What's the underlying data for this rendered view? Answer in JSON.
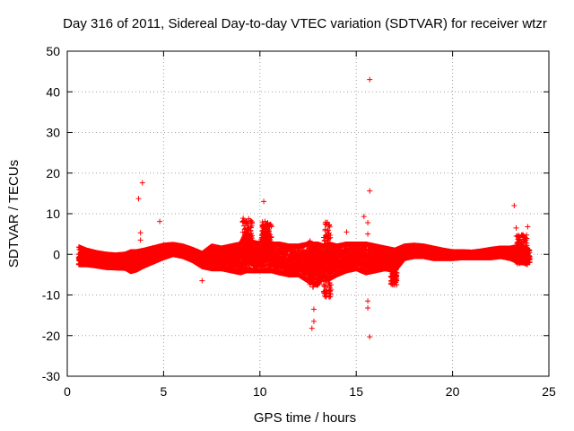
{
  "chart_data": {
    "type": "scatter",
    "title": "Day 316 of 2011, Sidereal Day-to-day VTEC variation (SDTVAR) for receiver wtzr",
    "xlabel": "GPS time / hours",
    "ylabel": "SDTVAR / TECUs",
    "xlim": [
      0,
      25
    ],
    "ylim": [
      -30,
      50
    ],
    "x_ticks": [
      0,
      5,
      10,
      15,
      20,
      25
    ],
    "y_ticks": [
      -30,
      -20,
      -10,
      0,
      10,
      20,
      30,
      40,
      50
    ],
    "x_tick_labels": [
      "0",
      "5",
      "10",
      "15",
      "20",
      "25"
    ],
    "y_tick_labels": [
      "-30",
      "-20",
      "-10",
      "0",
      "10",
      "20",
      "30",
      "40",
      "50"
    ],
    "grid": true,
    "marker": "+",
    "color": "#ff0000",
    "series": [
      {
        "name": "SDTVAR",
        "band": [
          [
            0.6,
            -2.5,
            1.8
          ],
          [
            1.0,
            -2.5,
            1.0
          ],
          [
            1.5,
            -2.8,
            0.4
          ],
          [
            2.0,
            -3.2,
            0.0
          ],
          [
            2.5,
            -3.3,
            -0.2
          ],
          [
            3.0,
            -3.4,
            0.0
          ],
          [
            3.3,
            -4.2,
            0.6
          ],
          [
            3.6,
            -3.8,
            0.6
          ],
          [
            4.0,
            -2.8,
            1.0
          ],
          [
            4.5,
            -1.8,
            1.6
          ],
          [
            5.0,
            -0.8,
            2.2
          ],
          [
            5.5,
            0.0,
            2.4
          ],
          [
            6.0,
            -0.5,
            2.0
          ],
          [
            6.5,
            -1.5,
            1.2
          ],
          [
            7.0,
            -3.0,
            0.2
          ],
          [
            7.5,
            -3.5,
            2.0
          ],
          [
            8.0,
            -3.5,
            1.5
          ],
          [
            8.5,
            -4.0,
            2.0
          ],
          [
            9.0,
            -4.5,
            2.5
          ],
          [
            9.3,
            -4.0,
            5.5
          ],
          [
            9.6,
            -4.0,
            3.0
          ],
          [
            10.0,
            -4.0,
            2.5
          ],
          [
            10.3,
            -4.0,
            7.5
          ],
          [
            10.6,
            -4.0,
            2.5
          ],
          [
            11.0,
            -4.5,
            2.5
          ],
          [
            11.5,
            -5.0,
            2.0
          ],
          [
            12.0,
            -5.0,
            2.0
          ],
          [
            12.5,
            -6.5,
            2.5
          ],
          [
            13.0,
            -7.5,
            2.5
          ],
          [
            13.3,
            -5.5,
            2.0
          ],
          [
            13.6,
            -6.0,
            2.5
          ],
          [
            14.0,
            -5.0,
            2.0
          ],
          [
            14.5,
            -4.0,
            2.5
          ],
          [
            15.0,
            -3.5,
            2.5
          ],
          [
            15.5,
            -4.5,
            2.5
          ],
          [
            16.0,
            -4.0,
            2.0
          ],
          [
            16.5,
            -3.5,
            1.5
          ],
          [
            17.0,
            -4.0,
            1.0
          ],
          [
            17.5,
            -1.0,
            2.0
          ],
          [
            18.0,
            -0.5,
            2.2
          ],
          [
            18.5,
            -0.5,
            2.0
          ],
          [
            19.0,
            -1.0,
            1.5
          ],
          [
            19.5,
            -1.0,
            1.0
          ],
          [
            20.0,
            -1.0,
            0.6
          ],
          [
            20.5,
            -0.8,
            0.6
          ],
          [
            21.0,
            -0.8,
            0.5
          ],
          [
            21.5,
            -0.8,
            0.8
          ],
          [
            22.0,
            -0.8,
            1.2
          ],
          [
            22.5,
            -0.5,
            1.5
          ],
          [
            23.0,
            -1.0,
            1.5
          ],
          [
            23.5,
            -2.0,
            2.0
          ],
          [
            24.0,
            -2.0,
            1.0
          ]
        ],
        "excursions": [
          {
            "x": [
              9.1,
              9.6
            ],
            "y": [
              -2.0,
              9.0
            ]
          },
          {
            "x": [
              10.1,
              10.6
            ],
            "y": [
              -2.0,
              8.5
            ]
          },
          {
            "x": [
              12.5,
              13.0
            ],
            "y": [
              -8.5,
              3.0
            ]
          },
          {
            "x": [
              13.3,
              13.7
            ],
            "y": [
              -10.5,
              8.0
            ]
          },
          {
            "x": [
              16.8,
              17.1
            ],
            "y": [
              -7.5,
              -2.0
            ]
          },
          {
            "x": [
              23.3,
              23.9
            ],
            "y": [
              -2.5,
              5.0
            ]
          }
        ],
        "outliers": [
          {
            "x": 3.7,
            "y": 13.7
          },
          {
            "x": 3.9,
            "y": 17.6
          },
          {
            "x": 3.8,
            "y": 5.3
          },
          {
            "x": 3.8,
            "y": 3.5
          },
          {
            "x": 4.8,
            "y": 8.1
          },
          {
            "x": 7.0,
            "y": -6.5
          },
          {
            "x": 10.2,
            "y": 13.0
          },
          {
            "x": 12.8,
            "y": -13.5
          },
          {
            "x": 12.8,
            "y": -16.5
          },
          {
            "x": 12.7,
            "y": -18.2
          },
          {
            "x": 12.6,
            "y": 3.3
          },
          {
            "x": 13.5,
            "y": 7.8
          },
          {
            "x": 14.5,
            "y": 5.5
          },
          {
            "x": 15.4,
            "y": 9.3
          },
          {
            "x": 15.6,
            "y": 7.8
          },
          {
            "x": 15.6,
            "y": 5.0
          },
          {
            "x": 15.7,
            "y": 43.0
          },
          {
            "x": 15.7,
            "y": 15.6
          },
          {
            "x": 15.6,
            "y": -11.5
          },
          {
            "x": 15.6,
            "y": -13.2
          },
          {
            "x": 15.7,
            "y": -20.3
          },
          {
            "x": 23.2,
            "y": 12.0
          },
          {
            "x": 23.3,
            "y": 6.5
          },
          {
            "x": 23.9,
            "y": 6.8
          },
          {
            "x": 23.5,
            "y": 3.0
          }
        ]
      }
    ]
  }
}
